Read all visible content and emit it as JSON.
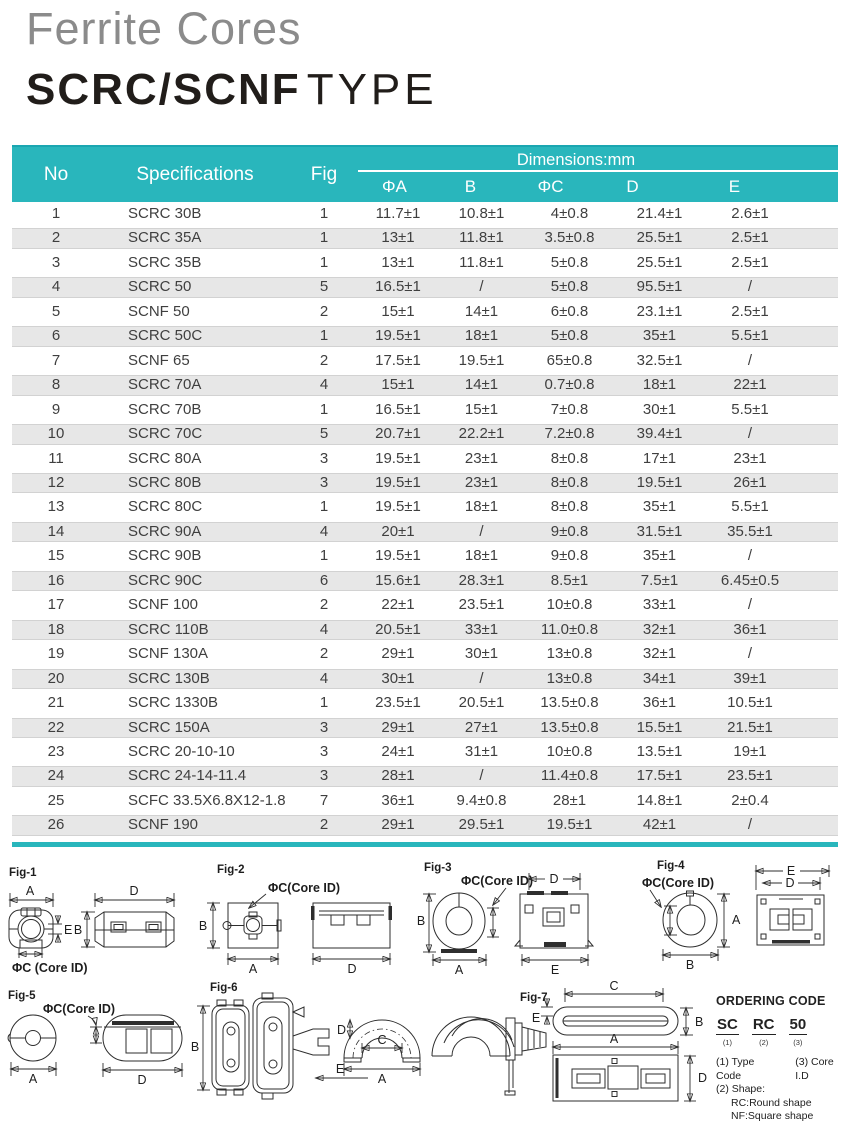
{
  "page": {
    "title": "Ferrite Cores",
    "subtitle_strong": "SCRC/SCNF",
    "subtitle_light": "TYPE"
  },
  "table": {
    "col_no": "No",
    "col_spec": "Specifications",
    "col_fig": "Fig",
    "col_dims": "Dimensions:mm",
    "sub_cols": [
      "ΦA",
      "B",
      "ΦC",
      "D",
      "E"
    ],
    "rows": [
      [
        "1",
        "SCRC 30B",
        "1",
        "11.7±1",
        "10.8±1",
        "4±0.8",
        "21.4±1",
        "2.6±1"
      ],
      [
        "2",
        "SCRC 35A",
        "1",
        "13±1",
        "11.8±1",
        "3.5±0.8",
        "25.5±1",
        "2.5±1"
      ],
      [
        "3",
        "SCRC 35B",
        "1",
        "13±1",
        "11.8±1",
        "5±0.8",
        "25.5±1",
        "2.5±1"
      ],
      [
        "4",
        "SCRC 50",
        "5",
        "16.5±1",
        "/",
        "5±0.8",
        "95.5±1",
        "/"
      ],
      [
        "5",
        "SCNF 50",
        "2",
        "15±1",
        "14±1",
        "6±0.8",
        "23.1±1",
        "2.5±1"
      ],
      [
        "6",
        "SCRC 50C",
        "1",
        "19.5±1",
        "18±1",
        "5±0.8",
        "35±1",
        "5.5±1"
      ],
      [
        "7",
        "SCNF 65",
        "2",
        "17.5±1",
        "19.5±1",
        "65±0.8",
        "32.5±1",
        "/"
      ],
      [
        "8",
        "SCRC 70A",
        "4",
        "15±1",
        "14±1",
        "0.7±0.8",
        "18±1",
        "22±1"
      ],
      [
        "9",
        "SCRC 70B",
        "1",
        "16.5±1",
        "15±1",
        "7±0.8",
        "30±1",
        "5.5±1"
      ],
      [
        "10",
        "SCRC 70C",
        "5",
        "20.7±1",
        "22.2±1",
        "7.2±0.8",
        "39.4±1",
        "/"
      ],
      [
        "11",
        "SCRC 80A",
        "3",
        "19.5±1",
        "23±1",
        "8±0.8",
        "17±1",
        "23±1"
      ],
      [
        "12",
        "SCRC 80B",
        "3",
        "19.5±1",
        "23±1",
        "8±0.8",
        "19.5±1",
        "26±1"
      ],
      [
        "13",
        "SCRC 80C",
        "1",
        "19.5±1",
        "18±1",
        "8±0.8",
        "35±1",
        "5.5±1"
      ],
      [
        "14",
        "SCRC 90A",
        "4",
        "20±1",
        "/",
        "9±0.8",
        "31.5±1",
        "35.5±1"
      ],
      [
        "15",
        "SCRC 90B",
        "1",
        "19.5±1",
        "18±1",
        "9±0.8",
        "35±1",
        "/"
      ],
      [
        "16",
        "SCRC 90C",
        "6",
        "15.6±1",
        "28.3±1",
        "8.5±1",
        "7.5±1",
        "6.45±0.5"
      ],
      [
        "17",
        "SCNF 100",
        "2",
        "22±1",
        "23.5±1",
        "10±0.8",
        "33±1",
        "/"
      ],
      [
        "18",
        "SCRC 110B",
        "4",
        "20.5±1",
        "33±1",
        "11.0±0.8",
        "32±1",
        "36±1"
      ],
      [
        "19",
        "SCNF 130A",
        "2",
        "29±1",
        "30±1",
        "13±0.8",
        "32±1",
        "/"
      ],
      [
        "20",
        "SCRC 130B",
        "4",
        "30±1",
        "/",
        "13±0.8",
        "34±1",
        "39±1"
      ],
      [
        "21",
        "SCRC 1330B",
        "1",
        "23.5±1",
        "20.5±1",
        "13.5±0.8",
        "36±1",
        "10.5±1"
      ],
      [
        "22",
        "SCRC 150A",
        "3",
        "29±1",
        "27±1",
        "13.5±0.8",
        "15.5±1",
        "21.5±1"
      ],
      [
        "23",
        "SCRC 20-10-10",
        "3",
        "24±1",
        "31±1",
        "10±0.8",
        "13.5±1",
        "19±1"
      ],
      [
        "24",
        "SCRC 24-14-11.4",
        "3",
        "28±1",
        "/",
        "11.4±0.8",
        "17.5±1",
        "23.5±1"
      ],
      [
        "25",
        "SCFC 33.5X6.8X12-1.8",
        "7",
        "36±1",
        "9.4±0.8",
        "28±1",
        "14.8±1",
        "2±0.4"
      ],
      [
        "26",
        "SCNF 190",
        "2",
        "29±1",
        "29.5±1",
        "19.5±1",
        "42±1",
        "/"
      ]
    ]
  },
  "figures": {
    "fig1": "Fig-1",
    "fig2": "Fig-2",
    "fig3": "Fig-3",
    "fig4": "Fig-4",
    "fig5": "Fig-5",
    "fig6": "Fig-6",
    "fig7": "Fig-7",
    "dim_a": "A",
    "dim_b": "B",
    "dim_c": "C",
    "dim_d": "D",
    "dim_e": "E",
    "core_id": "ΦC(Core ID)",
    "core_id_spaced": "ΦC (Core ID)"
  },
  "ordering": {
    "title": "ORDERING CODE",
    "codes": [
      "SC",
      "RC",
      "50"
    ],
    "code_indices": [
      "(1)",
      "(2)",
      "(3)"
    ],
    "note_type": "(1) Type Code",
    "note_coreid": "(3) Core I.D",
    "note_shape": "(2) Shape:",
    "note_rc": "RC:Round shape",
    "note_nf": "NF:Square shape"
  },
  "colors": {
    "accent": "#29b6bc",
    "stripe": "#e7e7e7"
  }
}
